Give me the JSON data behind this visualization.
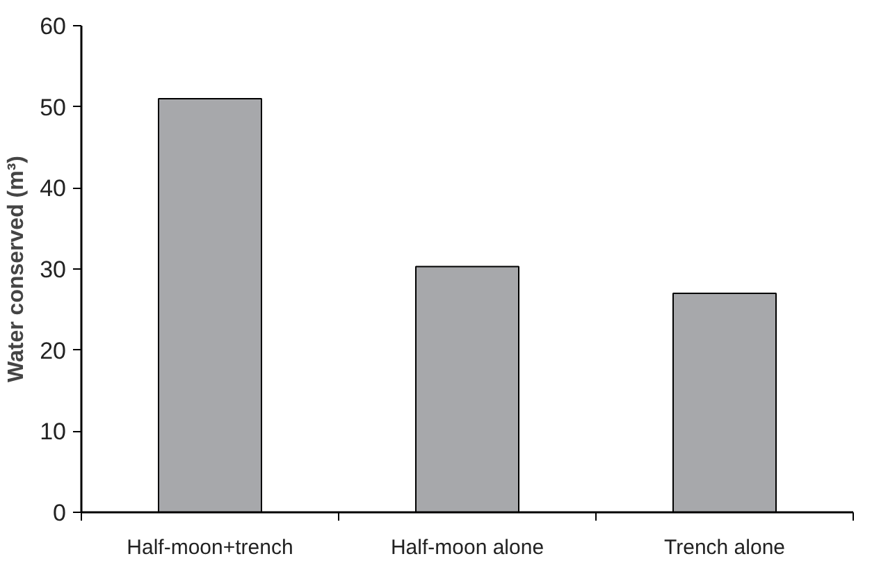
{
  "chart_data": {
    "type": "bar",
    "ylabel": "Water conserved (m³)",
    "categories": [
      "Half-moon+trench",
      "Half-moon alone",
      "Trench alone"
    ],
    "values": [
      51.0,
      30.3,
      27.0
    ],
    "color": "#a7a8ab",
    "ylim": [
      0,
      60
    ],
    "yticks": [
      0,
      10,
      20,
      30,
      40,
      50,
      60
    ],
    "grid": false
  }
}
